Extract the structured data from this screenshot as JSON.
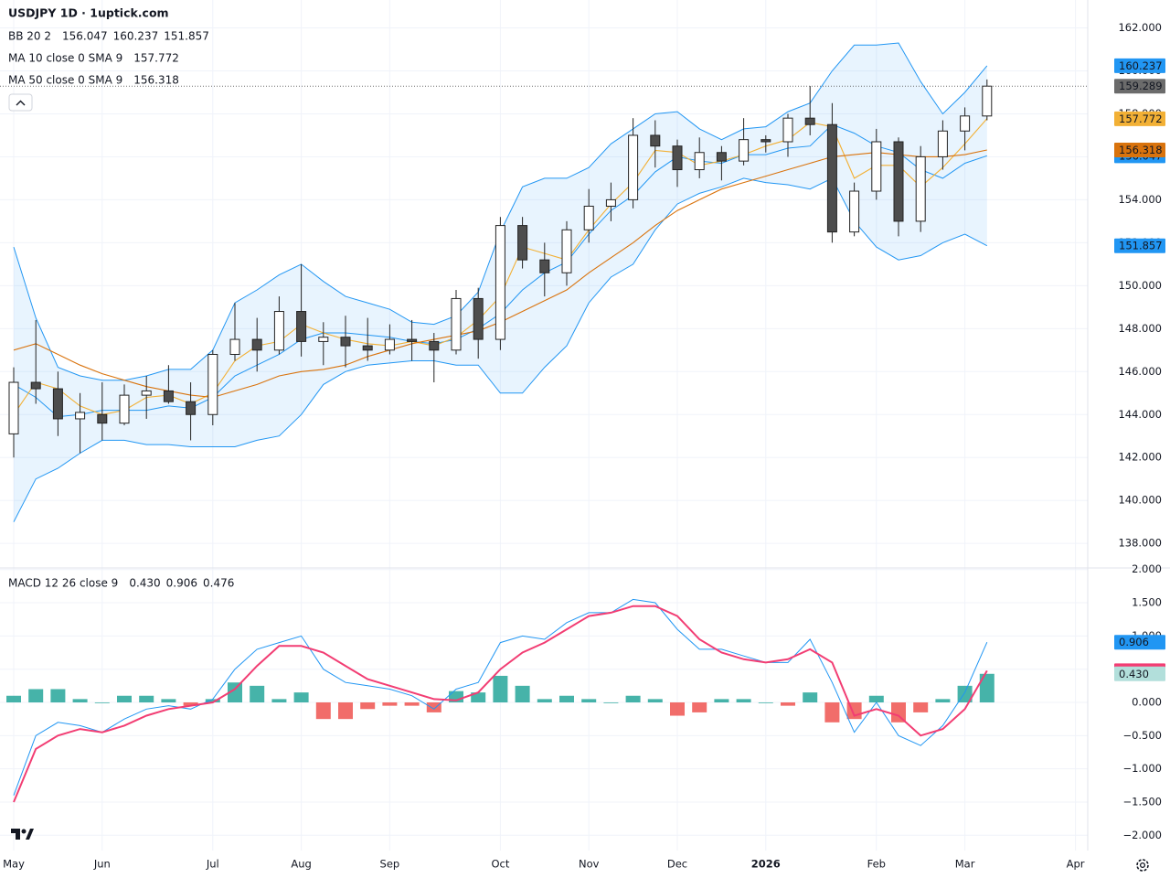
{
  "chart_data": {
    "type": "candlestick",
    "title": "USDJPY 1D · 1uptick.com",
    "categories": [
      "May",
      null,
      null,
      null,
      "Jun",
      null,
      null,
      null,
      null,
      "Jul",
      null,
      null,
      null,
      "Aug",
      null,
      null,
      null,
      "Sep",
      null,
      null,
      null,
      null,
      "Oct",
      null,
      null,
      null,
      "Nov",
      null,
      null,
      null,
      "Dec",
      null,
      null,
      null,
      "2026",
      null,
      null,
      null,
      null,
      "Feb",
      null,
      null,
      null,
      "Mar",
      null,
      null,
      null,
      null,
      "Apr"
    ],
    "open": [
      143.1,
      145.5,
      145.2,
      143.8,
      144.0,
      143.6,
      144.9,
      145.1,
      144.6,
      144.0,
      146.8,
      147.5,
      147.0,
      148.8,
      147.4,
      147.6,
      147.2,
      147.0,
      147.5,
      147.4,
      147.0,
      149.4,
      147.5,
      152.8,
      151.2,
      150.6,
      152.6,
      153.7,
      154.0,
      157.0,
      156.5,
      155.4,
      156.2,
      155.8,
      156.8,
      156.7,
      157.8,
      157.5,
      152.5,
      154.4,
      156.7,
      153.0,
      156.0,
      157.2,
      157.9,
      null,
      null,
      null,
      null
    ],
    "high": [
      146.2,
      148.4,
      146.0,
      145.0,
      145.5,
      145.4,
      145.8,
      146.3,
      145.5,
      147.0,
      149.2,
      148.5,
      149.5,
      151.0,
      148.3,
      148.6,
      148.5,
      148.2,
      148.4,
      147.8,
      149.8,
      149.9,
      153.2,
      153.2,
      152.0,
      153.0,
      154.5,
      154.8,
      157.8,
      157.7,
      156.8,
      156.9,
      156.5,
      157.8,
      157.0,
      158.0,
      159.3,
      158.5,
      154.8,
      157.3,
      156.9,
      156.5,
      157.7,
      158.3,
      159.6,
      null,
      null,
      null,
      null
    ],
    "low": [
      142.0,
      144.5,
      143.0,
      142.2,
      142.8,
      143.5,
      143.8,
      144.5,
      142.8,
      143.5,
      146.5,
      146.0,
      146.8,
      146.7,
      146.3,
      146.2,
      146.5,
      146.8,
      146.5,
      145.5,
      146.8,
      146.6,
      147.0,
      150.8,
      149.5,
      150.0,
      152.0,
      153.0,
      153.6,
      155.5,
      154.6,
      155.0,
      154.9,
      155.6,
      156.2,
      156.0,
      157.0,
      152.0,
      152.3,
      154.0,
      152.3,
      152.5,
      155.4,
      156.3,
      157.7,
      null,
      null,
      null,
      null
    ],
    "close": [
      145.5,
      145.2,
      143.8,
      144.1,
      143.6,
      144.9,
      145.1,
      144.6,
      144.0,
      146.8,
      147.5,
      147.0,
      148.8,
      147.4,
      147.6,
      147.2,
      147.0,
      147.5,
      147.4,
      147.0,
      149.4,
      147.5,
      152.8,
      151.2,
      150.6,
      152.6,
      153.7,
      154.0,
      157.0,
      156.5,
      155.4,
      156.2,
      155.8,
      156.8,
      156.7,
      157.8,
      157.5,
      152.5,
      154.4,
      156.7,
      153.0,
      156.0,
      157.2,
      157.9,
      159.289,
      null,
      null,
      null,
      null
    ],
    "up_color": "#ffffff",
    "down_color": "#4d4d4d",
    "border_color": "#222222",
    "last_price_color": "#6b6b6b",
    "ylim": [
      136.9,
      163.3
    ],
    "yticks": [
      {
        "value": 138,
        "label": "138.000"
      },
      {
        "value": 140,
        "label": "140.000"
      },
      {
        "value": 142,
        "label": "142.000"
      },
      {
        "value": 144,
        "label": "144.000"
      },
      {
        "value": 146,
        "label": "146.000"
      },
      {
        "value": 148,
        "label": "148.000"
      },
      {
        "value": 150,
        "label": "150.000"
      },
      {
        "value": 152,
        "label": "152.000"
      },
      {
        "value": 154,
        "label": "154.000"
      },
      {
        "value": 156,
        "label": "156.000"
      },
      {
        "value": 158,
        "label": "158.000"
      },
      {
        "value": 160,
        "label": "160.000"
      },
      {
        "value": 162,
        "label": "162.000"
      }
    ],
    "grid": true,
    "indicators": [
      {
        "label": "BB 20 2",
        "band_fill": "rgba(33,150,243,0.1)",
        "series": [
          {
            "color": "#2196f3",
            "last_label": "156.047",
            "values": [
              145.4,
              144.8,
              143.9,
              144.0,
              144.2,
              144.2,
              144.2,
              144.4,
              144.3,
              144.8,
              145.8,
              146.3,
              146.8,
              147.5,
              147.8,
              147.8,
              147.7,
              147.6,
              147.4,
              147.3,
              147.5,
              148.0,
              148.7,
              149.8,
              150.6,
              151.1,
              152.4,
              153.5,
              154.2,
              155.3,
              156.0,
              155.8,
              155.7,
              156.1,
              156.1,
              156.4,
              156.5,
              157.5,
              157.1,
              156.5,
              156.2,
              155.4,
              155.0,
              155.7,
              156.047,
              null,
              null,
              null,
              null
            ]
          },
          {
            "color": "#2196f3",
            "last_label": "160.237",
            "values": [
              151.8,
              148.5,
              146.2,
              145.8,
              145.6,
              145.6,
              145.8,
              146.1,
              146.1,
              147.0,
              149.2,
              149.8,
              150.5,
              151.0,
              150.2,
              149.5,
              149.2,
              148.9,
              148.3,
              148.2,
              148.6,
              149.7,
              152.5,
              154.6,
              155.0,
              155.0,
              155.5,
              156.6,
              157.3,
              158.0,
              158.1,
              157.3,
              156.8,
              157.3,
              157.4,
              158.1,
              158.5,
              160.0,
              161.2,
              161.2,
              161.3,
              159.5,
              158.0,
              159.0,
              160.237,
              null,
              null,
              null,
              null
            ]
          },
          {
            "color": "#2196f3",
            "last_label": "151.857",
            "values": [
              139.0,
              141.0,
              141.5,
              142.2,
              142.8,
              142.8,
              142.6,
              142.6,
              142.5,
              142.5,
              142.5,
              142.8,
              143.0,
              144.0,
              145.4,
              146.0,
              146.3,
              146.4,
              146.5,
              146.5,
              146.3,
              146.3,
              145.0,
              145.0,
              146.2,
              147.2,
              149.2,
              150.4,
              151.0,
              152.6,
              153.8,
              154.3,
              154.6,
              155.0,
              154.8,
              154.7,
              154.5,
              155.0,
              153.0,
              151.8,
              151.2,
              151.4,
              152.0,
              152.4,
              151.857,
              null,
              null,
              null,
              null
            ]
          }
        ]
      },
      {
        "label": "MA 10 close 0 SMA 9",
        "series": [
          {
            "color": "#f2b035",
            "last_label": "157.772",
            "values": [
              144.0,
              145.5,
              145.2,
              144.4,
              144.0,
              144.2,
              144.8,
              144.9,
              144.5,
              145.0,
              146.5,
              147.2,
              147.4,
              148.2,
              147.8,
              147.5,
              147.3,
              147.2,
              147.4,
              147.2,
              147.6,
              148.4,
              149.5,
              151.8,
              151.5,
              151.2,
              152.6,
              153.8,
              154.8,
              156.3,
              156.2,
              155.6,
              155.8,
              156.1,
              156.5,
              156.8,
              157.6,
              157.4,
              155.0,
              155.6,
              155.6,
              154.6,
              155.5,
              156.6,
              157.772,
              null,
              null,
              null,
              null
            ]
          }
        ]
      },
      {
        "label": "MA 50 close 0 SMA 9",
        "series": [
          {
            "color": "#d9730d",
            "last_label": "156.318",
            "values": [
              147.0,
              147.3,
              146.8,
              146.3,
              145.9,
              145.6,
              145.3,
              145.1,
              144.9,
              144.8,
              145.1,
              145.4,
              145.8,
              146.0,
              146.1,
              146.3,
              146.7,
              147.0,
              147.3,
              147.5,
              147.7,
              147.9,
              148.3,
              148.8,
              149.3,
              149.8,
              150.6,
              151.3,
              152.0,
              152.8,
              153.5,
              154.0,
              154.5,
              154.8,
              155.1,
              155.4,
              155.7,
              156.0,
              156.1,
              156.2,
              156.1,
              156.0,
              156.0,
              156.1,
              156.318,
              null,
              null,
              null,
              null
            ]
          }
        ]
      }
    ],
    "macd": {
      "label": "MACD 12 26 close 9",
      "ylim": [
        -2.23,
        2.01
      ],
      "yticks": [
        {
          "value": -2,
          "label": "−2.000"
        },
        {
          "value": -1.5,
          "label": "−1.500"
        },
        {
          "value": -1,
          "label": "−1.000"
        },
        {
          "value": -0.5,
          "label": "−0.500"
        },
        {
          "value": 0,
          "label": "0.000"
        },
        {
          "value": 0.5,
          "label": "0.500"
        },
        {
          "value": 1,
          "label": "1.000"
        },
        {
          "value": 1.5,
          "label": "1.500"
        },
        {
          "value": 2,
          "label": "2.000"
        }
      ],
      "histogram": {
        "last_label": "0.430",
        "color": "#b2dfdb",
        "pos_color": "#26a69a",
        "neg_color": "#ef5350",
        "values": [
          0.1,
          0.2,
          0.2,
          0.05,
          0.0,
          0.1,
          0.1,
          0.05,
          -0.05,
          0.05,
          0.3,
          0.25,
          0.05,
          0.15,
          -0.25,
          -0.25,
          -0.1,
          -0.05,
          -0.05,
          -0.15,
          0.17,
          0.15,
          0.4,
          0.25,
          0.05,
          0.1,
          0.05,
          0.0,
          0.1,
          0.05,
          -0.2,
          -0.15,
          0.05,
          0.05,
          0.0,
          -0.05,
          0.15,
          -0.3,
          -0.25,
          0.1,
          -0.3,
          -0.15,
          0.05,
          0.25,
          0.43,
          null,
          null,
          null,
          null
        ]
      },
      "macd_line": {
        "last_label": "0.906",
        "color": "#2196f3",
        "values": [
          -1.4,
          -0.5,
          -0.3,
          -0.35,
          -0.45,
          -0.25,
          -0.1,
          -0.05,
          -0.1,
          0.05,
          0.5,
          0.8,
          0.9,
          1.0,
          0.5,
          0.3,
          0.25,
          0.2,
          0.1,
          -0.1,
          0.2,
          0.3,
          0.9,
          1.0,
          0.95,
          1.2,
          1.35,
          1.35,
          1.55,
          1.5,
          1.1,
          0.8,
          0.8,
          0.7,
          0.6,
          0.6,
          0.95,
          0.3,
          -0.45,
          0.0,
          -0.5,
          -0.65,
          -0.35,
          0.15,
          0.906,
          null,
          null,
          null,
          null
        ]
      },
      "signal_line": {
        "last_label": "0.476",
        "color": "#f23d73",
        "values": [
          -1.5,
          -0.7,
          -0.5,
          -0.4,
          -0.45,
          -0.35,
          -0.2,
          -0.1,
          -0.05,
          0.0,
          0.2,
          0.55,
          0.85,
          0.85,
          0.75,
          0.55,
          0.35,
          0.25,
          0.15,
          0.05,
          0.03,
          0.15,
          0.5,
          0.75,
          0.9,
          1.1,
          1.3,
          1.35,
          1.45,
          1.45,
          1.3,
          0.95,
          0.75,
          0.65,
          0.6,
          0.65,
          0.8,
          0.6,
          -0.2,
          -0.1,
          -0.2,
          -0.5,
          -0.4,
          -0.1,
          0.476,
          null,
          null,
          null,
          null
        ]
      }
    }
  }
}
